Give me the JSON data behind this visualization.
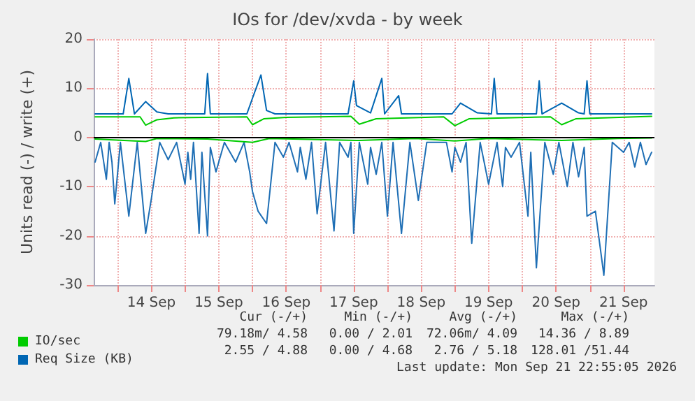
{
  "chart_data": {
    "type": "line",
    "title": "IOs for /dev/xvda - by week",
    "ylabel": "Units read (-) / write (+)",
    "xlim": [
      "2026-09-13T15:30",
      "2026-09-21T23:00"
    ],
    "xticks": [
      {
        "value": "2026-09-14T00:00",
        "label": null
      },
      {
        "value": "2026-09-14T12:00",
        "label": "14 Sep"
      },
      {
        "value": "2026-09-15T00:00",
        "label": null
      },
      {
        "value": "2026-09-15T12:00",
        "label": "15 Sep"
      },
      {
        "value": "2026-09-16T00:00",
        "label": null
      },
      {
        "value": "2026-09-16T12:00",
        "label": "16 Sep"
      },
      {
        "value": "2026-09-17T00:00",
        "label": null
      },
      {
        "value": "2026-09-17T12:00",
        "label": "17 Sep"
      },
      {
        "value": "2026-09-18T00:00",
        "label": null
      },
      {
        "value": "2026-09-18T12:00",
        "label": "18 Sep"
      },
      {
        "value": "2026-09-19T00:00",
        "label": null
      },
      {
        "value": "2026-09-19T12:00",
        "label": "19 Sep"
      },
      {
        "value": "2026-09-20T00:00",
        "label": null
      },
      {
        "value": "2026-09-20T12:00",
        "label": "20 Sep"
      },
      {
        "value": "2026-09-21T00:00",
        "label": null
      },
      {
        "value": "2026-09-21T12:00",
        "label": "21 Sep"
      }
    ],
    "ylim": [
      -30,
      20
    ],
    "yticks": [
      -30,
      -20,
      -10,
      0,
      10,
      20
    ],
    "grid": true,
    "legend": "bottom",
    "marker": "none",
    "line_style": "solid",
    "ref_lines": [
      {
        "axis": "y",
        "value": 0,
        "color": "#000000"
      }
    ],
    "series": [
      {
        "color": "#1f6fb5",
        "x": [
          "2026-09-13T16:00",
          "2026-09-13T18:00",
          "2026-09-13T20:00",
          "2026-09-13T21:00",
          "2026-09-13T22:00",
          "2026-09-13T23:00",
          "2026-09-14T01:00",
          "2026-09-14T04:00",
          "2026-09-14T07:00",
          "2026-09-14T10:00",
          "2026-09-14T12:00",
          "2026-09-14T15:00",
          "2026-09-14T18:00",
          "2026-09-14T21:00",
          "2026-09-15T00:00",
          "2026-09-15T01:00",
          "2026-09-15T02:00",
          "2026-09-15T03:00",
          "2026-09-15T05:00",
          "2026-09-15T06:00",
          "2026-09-15T08:00",
          "2026-09-15T09:00",
          "2026-09-15T11:00",
          "2026-09-15T14:00",
          "2026-09-15T18:00",
          "2026-09-15T21:00",
          "2026-09-15T23:00",
          "2026-09-16T00:00",
          "2026-09-16T02:00",
          "2026-09-16T05:00",
          "2026-09-16T08:00",
          "2026-09-16T11:00",
          "2026-09-16T13:00",
          "2026-09-16T16:00",
          "2026-09-16T17:00",
          "2026-09-16T19:00",
          "2026-09-16T21:00",
          "2026-09-16T23:00",
          "2026-09-17T02:00",
          "2026-09-17T05:00",
          "2026-09-17T07:00",
          "2026-09-17T10:00",
          "2026-09-17T11:00",
          "2026-09-17T12:00",
          "2026-09-17T14:00",
          "2026-09-17T17:00",
          "2026-09-17T18:00",
          "2026-09-17T20:00",
          "2026-09-17T22:00",
          "2026-09-18T00:00",
          "2026-09-18T02:00",
          "2026-09-18T05:00",
          "2026-09-18T08:00",
          "2026-09-18T11:00",
          "2026-09-18T14:00",
          "2026-09-18T18:00",
          "2026-09-18T21:00",
          "2026-09-18T23:00",
          "2026-09-19T00:00",
          "2026-09-19T02:00",
          "2026-09-19T04:00",
          "2026-09-19T06:00",
          "2026-09-19T09:00",
          "2026-09-19T12:00",
          "2026-09-19T15:00",
          "2026-09-19T17:00",
          "2026-09-19T18:00",
          "2026-09-19T20:00",
          "2026-09-19T23:00",
          "2026-09-20T02:00",
          "2026-09-20T03:00",
          "2026-09-20T05:00",
          "2026-09-20T06:00",
          "2026-09-20T08:00",
          "2026-09-20T11:00",
          "2026-09-20T13:00",
          "2026-09-20T16:00",
          "2026-09-20T18:00",
          "2026-09-20T20:00",
          "2026-09-20T22:00",
          "2026-09-20T23:00",
          "2026-09-21T02:00",
          "2026-09-21T05:00",
          "2026-09-21T08:00",
          "2026-09-21T12:00",
          "2026-09-21T14:00",
          "2026-09-21T16:00",
          "2026-09-21T18:00",
          "2026-09-21T20:00",
          "2026-09-21T22:00"
        ],
        "values": [
          -5,
          -1,
          -8.5,
          -1,
          -5,
          -13.5,
          -1,
          -16,
          -1,
          -19.5,
          -12.5,
          -1,
          -4.5,
          -1,
          -9.5,
          -3,
          -8.5,
          -1,
          -19.5,
          -3,
          -20,
          -2,
          -7,
          -1,
          -5,
          -1,
          -7,
          -11,
          -15,
          -17.5,
          -1,
          -4,
          -1,
          -7,
          -2,
          -8.5,
          -1,
          -15.5,
          -1,
          -19,
          -1,
          -4,
          -1,
          -19.5,
          -1,
          -9.5,
          -2,
          -7.5,
          -1,
          -16,
          -1,
          -19.5,
          -1,
          -12.8,
          -1,
          -1,
          -1,
          -7,
          -2,
          -5,
          -1,
          -21.5,
          -1,
          -9.5,
          -1,
          -10,
          -2,
          -4,
          -1,
          -16,
          -3,
          -26.5,
          -18,
          -1,
          -7.5,
          -1,
          -10,
          -1,
          -8,
          -2,
          -16,
          -15,
          -28,
          -1,
          -3,
          -1,
          -6,
          -1,
          -5.5,
          -3
        ]
      },
      {
        "color": "#00cc00",
        "x": [
          "2026-09-13T16:00",
          "2026-09-14T10:00",
          "2026-09-14T14:00",
          "2026-09-15T08:00",
          "2026-09-16T00:00",
          "2026-09-16T06:00",
          "2026-09-17T14:00",
          "2026-09-18T10:00",
          "2026-09-19T00:00",
          "2026-09-19T12:00",
          "2026-09-20T14:00",
          "2026-09-21T10:00",
          "2026-09-21T22:00"
        ],
        "values": [
          -0.3,
          -0.8,
          -0.2,
          -0.3,
          -1,
          -0.2,
          -0.6,
          -0.2,
          -0.7,
          -0.2,
          -0.6,
          -0.2,
          -0.1
        ]
      },
      {
        "name": "IO/sec",
        "color": "#00cc00",
        "x": [
          "2026-09-13T16:00",
          "2026-09-14T08:00",
          "2026-09-14T10:00",
          "2026-09-14T14:00",
          "2026-09-14T20:00",
          "2026-09-15T22:00",
          "2026-09-16T00:00",
          "2026-09-16T04:00",
          "2026-09-16T12:00",
          "2026-09-17T11:00",
          "2026-09-17T14:00",
          "2026-09-17T20:00",
          "2026-09-18T20:00",
          "2026-09-19T00:00",
          "2026-09-19T05:00",
          "2026-09-20T10:00",
          "2026-09-20T14:00",
          "2026-09-20T19:00",
          "2026-09-21T22:00"
        ],
        "values": [
          4.2,
          4.2,
          2.5,
          3.6,
          4,
          4.2,
          2.6,
          3.8,
          4.1,
          4.3,
          2.7,
          3.8,
          4.2,
          2.4,
          3.8,
          4.2,
          2.6,
          3.8,
          4.3
        ]
      },
      {
        "name": "Req Size (KB)",
        "color": "#0066b3",
        "x": [
          "2026-09-13T16:00",
          "2026-09-14T02:00",
          "2026-09-14T04:00",
          "2026-09-14T06:00",
          "2026-09-14T10:00",
          "2026-09-14T14:00",
          "2026-09-14T18:00",
          "2026-09-15T07:00",
          "2026-09-15T08:00",
          "2026-09-15T09:00",
          "2026-09-15T22:00",
          "2026-09-16T00:00",
          "2026-09-16T03:00",
          "2026-09-16T05:00",
          "2026-09-16T08:00",
          "2026-09-17T10:00",
          "2026-09-17T12:00",
          "2026-09-17T13:00",
          "2026-09-17T18:00",
          "2026-09-17T22:00",
          "2026-09-17T23:00",
          "2026-09-18T04:00",
          "2026-09-18T05:00",
          "2026-09-18T23:00",
          "2026-09-19T02:00",
          "2026-09-19T08:00",
          "2026-09-19T13:00",
          "2026-09-19T14:00",
          "2026-09-19T15:00",
          "2026-09-20T05:00",
          "2026-09-20T06:00",
          "2026-09-20T07:00",
          "2026-09-20T14:00",
          "2026-09-20T20:00",
          "2026-09-20T22:00",
          "2026-09-20T23:00",
          "2026-09-21T00:00",
          "2026-09-21T22:00"
        ],
        "values": [
          4.8,
          4.8,
          12,
          4.8,
          7.3,
          5.2,
          4.8,
          4.8,
          13,
          4.8,
          4.8,
          8,
          12.7,
          5.5,
          4.8,
          4.8,
          11.5,
          6.5,
          5,
          12,
          4.8,
          8.5,
          4.8,
          4.8,
          7,
          5,
          4.8,
          12,
          4.8,
          4.8,
          11.5,
          4.8,
          7,
          5,
          4.8,
          11.5,
          4.8,
          4.8
        ]
      }
    ],
    "annotations": [
      "Cur (-/+)",
      "Min (-/+)",
      "Avg (-/+)",
      "Max (-/+)",
      "79.18m/ 4.58",
      "0.00 / 2.01",
      "72.06m/ 4.09",
      "14.36 / 8.89",
      "2.55 / 4.88",
      "0.00 / 4.68",
      "2.76 / 5.18",
      "128.01 /51.44",
      "Last update: Mon Sep 21 22:55:05 2026"
    ]
  }
}
